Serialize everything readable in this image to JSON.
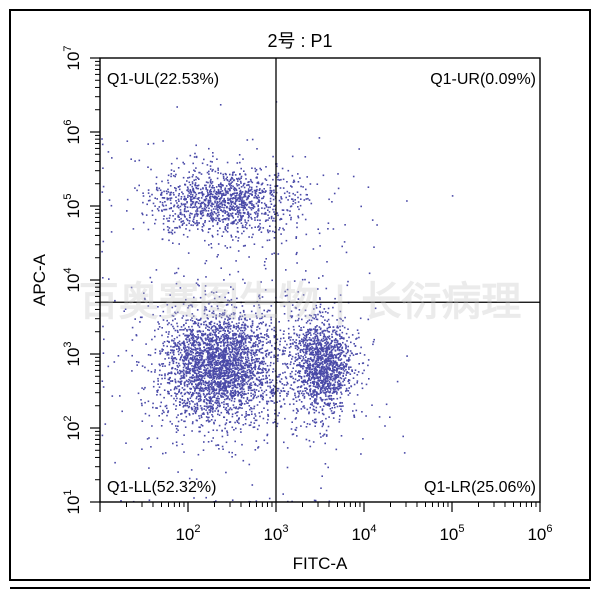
{
  "chart_data": {
    "type": "scatter",
    "title": "2号 : P1",
    "xlabel": "FITC-A",
    "ylabel": "APC-A",
    "xscale": "log",
    "yscale": "log",
    "xlim": [
      10,
      1000000
    ],
    "ylim": [
      10,
      10000000
    ],
    "xticks": [
      {
        "base": "10",
        "exp": "2",
        "value": 100
      },
      {
        "base": "10",
        "exp": "3",
        "value": 1000
      },
      {
        "base": "10",
        "exp": "4",
        "value": 10000
      },
      {
        "base": "10",
        "exp": "5",
        "value": 100000
      },
      {
        "base": "10",
        "exp": "6",
        "value": 1000000
      }
    ],
    "yticks": [
      {
        "base": "10",
        "exp": "1",
        "value": 10
      },
      {
        "base": "10",
        "exp": "2",
        "value": 100
      },
      {
        "base": "10",
        "exp": "3",
        "value": 1000
      },
      {
        "base": "10",
        "exp": "4",
        "value": 10000
      },
      {
        "base": "10",
        "exp": "5",
        "value": 100000
      },
      {
        "base": "10",
        "exp": "6",
        "value": 1000000
      },
      {
        "base": "10",
        "exp": "7",
        "value": 10000000
      }
    ],
    "gate": {
      "x": 1000,
      "y": 5000
    },
    "quadrants": [
      {
        "name": "Q1-UL",
        "label": "Q1-UL(22.53%)",
        "percent": 22.53,
        "position": "top-left"
      },
      {
        "name": "Q1-UR",
        "label": "Q1-UR(0.09%)",
        "percent": 0.09,
        "position": "top-right"
      },
      {
        "name": "Q1-LL",
        "label": "Q1-LL(52.32%)",
        "percent": 52.32,
        "position": "bottom-left"
      },
      {
        "name": "Q1-LR",
        "label": "Q1-LR(25.06%)",
        "percent": 25.06,
        "position": "bottom-right"
      }
    ],
    "populations": [
      {
        "name": "Q1-UL",
        "center_x": 250,
        "center_y": 120000,
        "spread_x_decades": 0.38,
        "spread_y_decades": 0.22,
        "percent": 22.53
      },
      {
        "name": "Q1-LL",
        "center_x": 220,
        "center_y": 700,
        "spread_x_decades": 0.32,
        "spread_y_decades": 0.38,
        "percent": 52.32
      },
      {
        "name": "Q1-LR",
        "center_x": 3200,
        "center_y": 700,
        "spread_x_decades": 0.18,
        "spread_y_decades": 0.32,
        "percent": 25.06
      },
      {
        "name": "Q1-UR",
        "center_x": 1500,
        "center_y": 15000,
        "spread_x_decades": 0.25,
        "spread_y_decades": 0.4,
        "percent": 0.09
      }
    ],
    "point_color": "#4a4aa8",
    "grid": false
  },
  "watermark": "百奥赛图生物 | 长衍病理"
}
